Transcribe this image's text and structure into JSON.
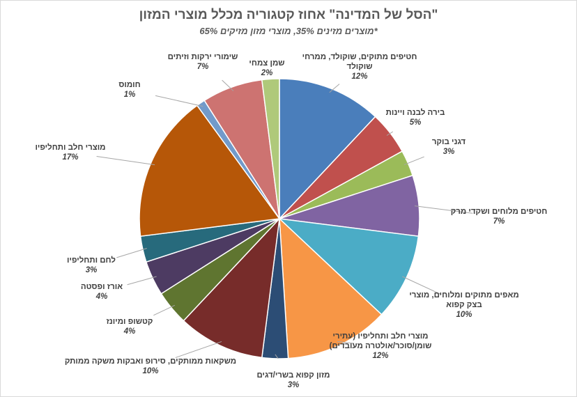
{
  "chart_data": {
    "type": "pie",
    "title": "\"הסל של המדינה\" אחוז קטגוריה מכלל מוצרי המזון",
    "subtitle": "*מוצרים מזינים 35%, מוצרי מזון מזיקים 65%",
    "categories": [
      "חטיפים מתוקים, שוקולד, ממרחי שוקולד",
      "בירה לבנה ויינות",
      "דגני בוקר",
      "חטיפים מלוחים ושקדי מרק",
      "מאפים מתוקים ומלוחים, מוצרי בצק קפוא",
      "מוצרי חלב ותחליפיו (עתירי שומן/סוכר/אולטרה מעובדים)",
      "מזון קפוא בשרי/דגים",
      "משקאות ממותקים, סירופ ואבקות משקה ממותק",
      "קטשופ ומיונז",
      "אורז ופסטה",
      "לחם ותחליפיו",
      "מוצרי חלב ותחליפיו",
      "חומוס",
      "שימורי ירקות וזיתים",
      "שמן צמחי"
    ],
    "values": [
      12,
      5,
      3,
      7,
      10,
      12,
      3,
      10,
      4,
      4,
      3,
      17,
      1,
      7,
      2
    ],
    "value_labels": [
      "12%",
      "5%",
      "3%",
      "7%",
      "10%",
      "12%",
      "3%",
      "10%",
      "4%",
      "4%",
      "3%",
      "17%",
      "1%",
      "7%",
      "2%"
    ],
    "colors": [
      "#4a7ebb",
      "#c0504d",
      "#9bbb59",
      "#8064a2",
      "#4bacc6",
      "#f79646",
      "#2c4d75",
      "#772c2a",
      "#5f7530",
      "#4d3b62",
      "#276a7c",
      "#b65708",
      "#729aca",
      "#cd7371",
      "#afc97a"
    ]
  }
}
